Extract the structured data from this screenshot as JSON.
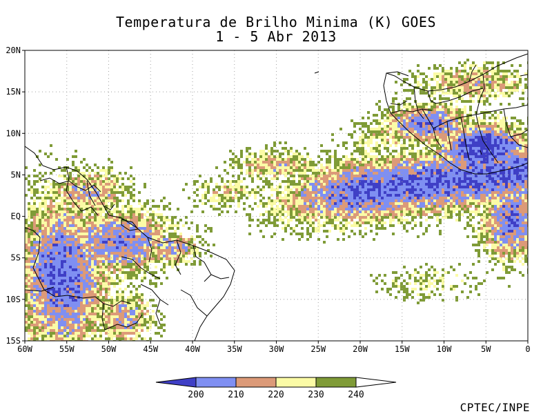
{
  "title": {
    "line1": "Temperatura de Brilho Minima (K) GOES",
    "line2": "1 - 5 Abr 2013"
  },
  "axes": {
    "lat_labels": [
      "20N",
      "15N",
      "10N",
      "5N",
      "EQ",
      "5S",
      "10S",
      "15S"
    ],
    "lon_labels": [
      "60W",
      "55W",
      "50W",
      "45W",
      "40W",
      "35W",
      "30W",
      "25W",
      "20W",
      "15W",
      "10W",
      "5W",
      "0"
    ]
  },
  "legend": {
    "ticks": [
      "200",
      "210",
      "220",
      "230",
      "240"
    ],
    "colors": [
      "#3f3fc6",
      "#7f8ff2",
      "#dc9a78",
      "#fbfba6",
      "#7f9b37",
      "#ffffff"
    ]
  },
  "credit": "CPTEC/INPE"
}
